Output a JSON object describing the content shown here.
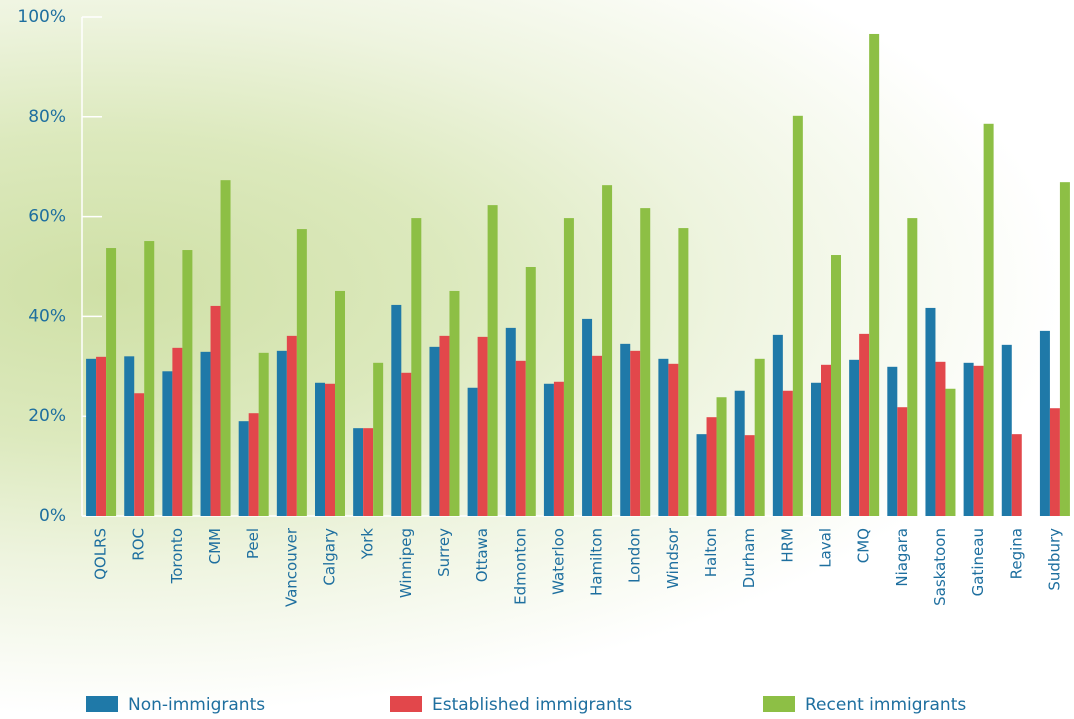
{
  "chart_data": {
    "type": "bar",
    "categories": [
      "QOLRS",
      "ROC",
      "Toronto",
      "CMM",
      "Peel",
      "Vancouver",
      "Calgary",
      "York",
      "Winnipeg",
      "Surrey",
      "Ottawa",
      "Edmonton",
      "Waterloo",
      "Hamilton",
      "London",
      "Windsor",
      "Halton",
      "Durham",
      "HRM",
      "Laval",
      "CMQ",
      "Niagara",
      "Saskatoon",
      "Gatineau",
      "Regina",
      "Sudbury"
    ],
    "series": [
      {
        "name": "Non-immigrants",
        "color": "#1f79a8",
        "values": [
          31.5,
          32,
          29,
          32.9,
          19,
          33.1,
          26.7,
          17.6,
          42.3,
          33.9,
          25.7,
          37.7,
          26.5,
          39.5,
          34.5,
          31.5,
          16.4,
          25.1,
          36.3,
          26.7,
          31.3,
          29.9,
          41.7,
          30.7,
          34.3,
          37.1
        ]
      },
      {
        "name": "Established immigrants",
        "color": "#e2474b",
        "values": [
          31.9,
          24.6,
          33.7,
          42.1,
          20.6,
          36.1,
          26.5,
          17.6,
          28.7,
          36.1,
          35.9,
          31.1,
          26.9,
          32.1,
          33.1,
          30.5,
          19.8,
          16.2,
          25.1,
          30.3,
          36.5,
          21.8,
          30.9,
          30.1,
          16.4,
          21.6
        ]
      },
      {
        "name": "Recent immigrants",
        "color": "#8dbf45",
        "values": [
          53.7,
          55.1,
          53.3,
          67.3,
          32.7,
          57.5,
          45.1,
          30.7,
          59.7,
          45.1,
          62.3,
          49.9,
          59.7,
          66.3,
          61.7,
          57.7,
          23.8,
          31.5,
          80.2,
          52.3,
          96.6,
          59.7,
          25.5,
          78.6,
          null,
          66.9
        ]
      }
    ],
    "ylim": [
      0,
      100
    ],
    "yticks": [
      {
        "value": 0,
        "label": "0%"
      },
      {
        "value": 20,
        "label": "20%"
      },
      {
        "value": 40,
        "label": "40%"
      },
      {
        "value": 60,
        "label": "60%"
      },
      {
        "value": 80,
        "label": "80%"
      },
      {
        "value": 100,
        "label": "100%"
      }
    ]
  }
}
